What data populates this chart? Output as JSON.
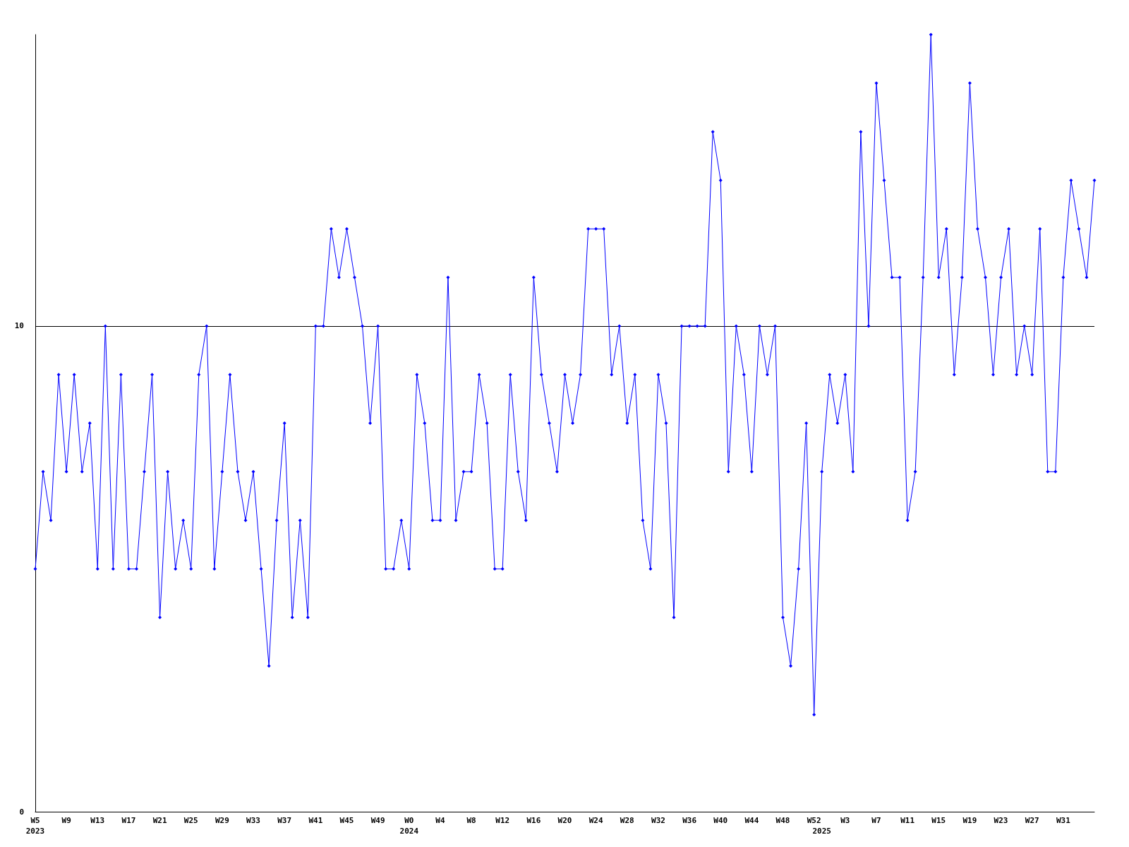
{
  "chart_data": {
    "type": "line",
    "categories": [
      "W5\n2023",
      null,
      null,
      null,
      "W9",
      null,
      null,
      null,
      "W13",
      null,
      null,
      null,
      "W17",
      null,
      null,
      null,
      "W21",
      null,
      null,
      null,
      "W25",
      null,
      null,
      null,
      "W29",
      null,
      null,
      null,
      "W33",
      null,
      null,
      null,
      "W37",
      null,
      null,
      null,
      "W41",
      null,
      null,
      null,
      "W45",
      null,
      null,
      null,
      "W49",
      null,
      null,
      null,
      "W0\n2024",
      null,
      null,
      null,
      "W4",
      null,
      null,
      null,
      "W8",
      null,
      null,
      null,
      "W12",
      null,
      null,
      null,
      "W16",
      null,
      null,
      null,
      "W20",
      null,
      null,
      null,
      "W24",
      null,
      null,
      null,
      "W28",
      null,
      null,
      null,
      "W32",
      null,
      null,
      null,
      "W36",
      null,
      null,
      null,
      "W40",
      null,
      null,
      null,
      "W44",
      null,
      null,
      null,
      "W48",
      null,
      null,
      null,
      "W52",
      "\n2025",
      null,
      null,
      "W3",
      null,
      null,
      null,
      "W7",
      null,
      null,
      null,
      "W11",
      null,
      null,
      null,
      "W15",
      null,
      null,
      null,
      "W19",
      null,
      null,
      null,
      "W23",
      null,
      null,
      null,
      "W27",
      null,
      null,
      null,
      "W31",
      null,
      null,
      null,
      null
    ],
    "series": [
      {
        "color": "#0000ff",
        "values": [
          5,
          7,
          6,
          9,
          7,
          9,
          7,
          8,
          5,
          10,
          5,
          9,
          5,
          5,
          7,
          9,
          4,
          7,
          5,
          6,
          5,
          9,
          10,
          5,
          7,
          9,
          7,
          6,
          7,
          5,
          3,
          6,
          8,
          4,
          6,
          4,
          10,
          10,
          12,
          11,
          12,
          11,
          10,
          8,
          10,
          5,
          5,
          6,
          5,
          9,
          8,
          6,
          6,
          11,
          6,
          7,
          7,
          9,
          8,
          5,
          5,
          9,
          7,
          6,
          11,
          9,
          8,
          7,
          9,
          8,
          9,
          12,
          12,
          12,
          9,
          10,
          8,
          9,
          6,
          5,
          9,
          8,
          4,
          10,
          10,
          10,
          10,
          14,
          13,
          7,
          10,
          9,
          7,
          10,
          9,
          10,
          4,
          3,
          5,
          8,
          2,
          7,
          9,
          8,
          9,
          7,
          14,
          10,
          15,
          13,
          11,
          11,
          6,
          7,
          11,
          16,
          11,
          12,
          9,
          11,
          15,
          12,
          11,
          9,
          11,
          12,
          9,
          10,
          9,
          12,
          7,
          7,
          11,
          13,
          12,
          11,
          13
        ]
      }
    ],
    "ylim": [
      0,
      16
    ],
    "yticks": [
      0,
      10
    ],
    "grid": "y",
    "marker": "diamond",
    "line_style": "solid"
  }
}
